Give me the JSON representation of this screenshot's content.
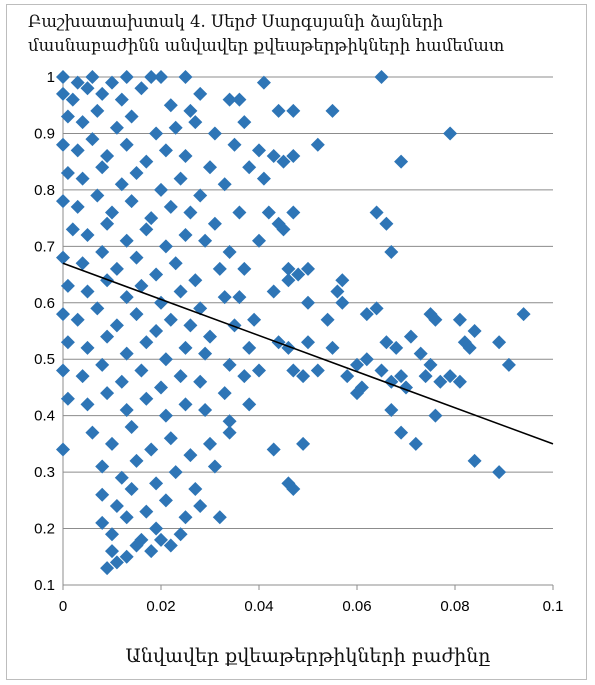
{
  "chart_data": {
    "type": "scatter",
    "title_lines": [
      "Բաշխատախտակ 4. Սերժ Սարգսյանի ձայների",
      "մասնաբաժինն անվավեր քվեաթերթիկների համեմատ"
    ],
    "xlabel": "Անվավեր քվեաթերթիկների բաժինը",
    "ylabel": "",
    "xlim": [
      0,
      0.1
    ],
    "ylim": [
      0.1,
      1
    ],
    "x_ticks": [
      "0",
      "0.02",
      "0.04",
      "0.06",
      "0.08",
      "0.1"
    ],
    "y_ticks": [
      "0.1",
      "0.2",
      "0.3",
      "0.4",
      "0.5",
      "0.6",
      "0.7",
      "0.8",
      "0.9",
      "1"
    ],
    "grid": "horizontal",
    "marker": "diamond",
    "marker_color": "#2E75B6",
    "trendline": {
      "color": "#000000",
      "x": [
        0,
        0.1
      ],
      "y": [
        0.67,
        0.35
      ]
    },
    "series": [
      {
        "points": [
          [
            0.0,
            1.0
          ],
          [
            0.003,
            0.99
          ],
          [
            0.006,
            1.0
          ],
          [
            0.01,
            0.99
          ],
          [
            0.013,
            1.0
          ],
          [
            0.018,
            1.0
          ],
          [
            0.02,
            1.0
          ],
          [
            0.025,
            1.0
          ],
          [
            0.041,
            0.99
          ],
          [
            0.065,
            1.0
          ],
          [
            0.0,
            0.97
          ],
          [
            0.002,
            0.96
          ],
          [
            0.005,
            0.98
          ],
          [
            0.008,
            0.97
          ],
          [
            0.012,
            0.96
          ],
          [
            0.016,
            0.98
          ],
          [
            0.022,
            0.95
          ],
          [
            0.026,
            0.94
          ],
          [
            0.028,
            0.97
          ],
          [
            0.034,
            0.96
          ],
          [
            0.036,
            0.96
          ],
          [
            0.001,
            0.93
          ],
          [
            0.004,
            0.92
          ],
          [
            0.007,
            0.94
          ],
          [
            0.011,
            0.91
          ],
          [
            0.014,
            0.93
          ],
          [
            0.019,
            0.9
          ],
          [
            0.023,
            0.91
          ],
          [
            0.027,
            0.92
          ],
          [
            0.031,
            0.9
          ],
          [
            0.037,
            0.92
          ],
          [
            0.044,
            0.94
          ],
          [
            0.047,
            0.94
          ],
          [
            0.055,
            0.94
          ],
          [
            0.079,
            0.9
          ],
          [
            0.0,
            0.88
          ],
          [
            0.003,
            0.87
          ],
          [
            0.006,
            0.89
          ],
          [
            0.009,
            0.86
          ],
          [
            0.013,
            0.88
          ],
          [
            0.017,
            0.85
          ],
          [
            0.021,
            0.87
          ],
          [
            0.025,
            0.86
          ],
          [
            0.03,
            0.84
          ],
          [
            0.035,
            0.88
          ],
          [
            0.04,
            0.87
          ],
          [
            0.043,
            0.86
          ],
          [
            0.045,
            0.85
          ],
          [
            0.047,
            0.86
          ],
          [
            0.052,
            0.88
          ],
          [
            0.069,
            0.85
          ],
          [
            0.001,
            0.83
          ],
          [
            0.004,
            0.82
          ],
          [
            0.008,
            0.84
          ],
          [
            0.012,
            0.81
          ],
          [
            0.015,
            0.83
          ],
          [
            0.02,
            0.8
          ],
          [
            0.024,
            0.82
          ],
          [
            0.028,
            0.79
          ],
          [
            0.033,
            0.81
          ],
          [
            0.038,
            0.84
          ],
          [
            0.041,
            0.82
          ],
          [
            0.0,
            0.78
          ],
          [
            0.003,
            0.77
          ],
          [
            0.007,
            0.79
          ],
          [
            0.01,
            0.76
          ],
          [
            0.014,
            0.78
          ],
          [
            0.018,
            0.75
          ],
          [
            0.022,
            0.77
          ],
          [
            0.026,
            0.76
          ],
          [
            0.031,
            0.74
          ],
          [
            0.036,
            0.76
          ],
          [
            0.042,
            0.76
          ],
          [
            0.044,
            0.74
          ],
          [
            0.047,
            0.76
          ],
          [
            0.066,
            0.74
          ],
          [
            0.064,
            0.76
          ],
          [
            0.002,
            0.73
          ],
          [
            0.005,
            0.72
          ],
          [
            0.009,
            0.74
          ],
          [
            0.013,
            0.71
          ],
          [
            0.017,
            0.73
          ],
          [
            0.021,
            0.7
          ],
          [
            0.025,
            0.72
          ],
          [
            0.029,
            0.71
          ],
          [
            0.034,
            0.69
          ],
          [
            0.04,
            0.71
          ],
          [
            0.045,
            0.73
          ],
          [
            0.067,
            0.69
          ],
          [
            0.0,
            0.68
          ],
          [
            0.004,
            0.67
          ],
          [
            0.008,
            0.69
          ],
          [
            0.011,
            0.66
          ],
          [
            0.015,
            0.68
          ],
          [
            0.019,
            0.65
          ],
          [
            0.023,
            0.67
          ],
          [
            0.027,
            0.64
          ],
          [
            0.032,
            0.66
          ],
          [
            0.037,
            0.66
          ],
          [
            0.046,
            0.66
          ],
          [
            0.048,
            0.65
          ],
          [
            0.05,
            0.66
          ],
          [
            0.057,
            0.64
          ],
          [
            0.001,
            0.63
          ],
          [
            0.005,
            0.62
          ],
          [
            0.009,
            0.64
          ],
          [
            0.013,
            0.61
          ],
          [
            0.016,
            0.63
          ],
          [
            0.02,
            0.6
          ],
          [
            0.024,
            0.62
          ],
          [
            0.028,
            0.59
          ],
          [
            0.033,
            0.61
          ],
          [
            0.036,
            0.61
          ],
          [
            0.043,
            0.62
          ],
          [
            0.046,
            0.64
          ],
          [
            0.05,
            0.6
          ],
          [
            0.056,
            0.62
          ],
          [
            0.057,
            0.6
          ],
          [
            0.0,
            0.58
          ],
          [
            0.003,
            0.57
          ],
          [
            0.007,
            0.59
          ],
          [
            0.011,
            0.56
          ],
          [
            0.015,
            0.58
          ],
          [
            0.019,
            0.55
          ],
          [
            0.022,
            0.57
          ],
          [
            0.026,
            0.56
          ],
          [
            0.03,
            0.54
          ],
          [
            0.035,
            0.56
          ],
          [
            0.039,
            0.57
          ],
          [
            0.054,
            0.57
          ],
          [
            0.062,
            0.58
          ],
          [
            0.064,
            0.59
          ],
          [
            0.075,
            0.58
          ],
          [
            0.076,
            0.57
          ],
          [
            0.081,
            0.57
          ],
          [
            0.094,
            0.58
          ],
          [
            0.001,
            0.53
          ],
          [
            0.005,
            0.52
          ],
          [
            0.009,
            0.54
          ],
          [
            0.013,
            0.51
          ],
          [
            0.017,
            0.53
          ],
          [
            0.021,
            0.5
          ],
          [
            0.025,
            0.52
          ],
          [
            0.029,
            0.51
          ],
          [
            0.034,
            0.49
          ],
          [
            0.038,
            0.52
          ],
          [
            0.044,
            0.53
          ],
          [
            0.046,
            0.52
          ],
          [
            0.05,
            0.53
          ],
          [
            0.055,
            0.52
          ],
          [
            0.06,
            0.49
          ],
          [
            0.062,
            0.5
          ],
          [
            0.066,
            0.53
          ],
          [
            0.068,
            0.52
          ],
          [
            0.071,
            0.54
          ],
          [
            0.073,
            0.51
          ],
          [
            0.075,
            0.49
          ],
          [
            0.082,
            0.53
          ],
          [
            0.083,
            0.52
          ],
          [
            0.084,
            0.55
          ],
          [
            0.089,
            0.53
          ],
          [
            0.0,
            0.48
          ],
          [
            0.004,
            0.47
          ],
          [
            0.008,
            0.49
          ],
          [
            0.012,
            0.46
          ],
          [
            0.016,
            0.48
          ],
          [
            0.02,
            0.45
          ],
          [
            0.024,
            0.47
          ],
          [
            0.028,
            0.46
          ],
          [
            0.033,
            0.44
          ],
          [
            0.037,
            0.47
          ],
          [
            0.04,
            0.48
          ],
          [
            0.047,
            0.48
          ],
          [
            0.049,
            0.47
          ],
          [
            0.052,
            0.48
          ],
          [
            0.058,
            0.47
          ],
          [
            0.061,
            0.45
          ],
          [
            0.065,
            0.48
          ],
          [
            0.067,
            0.46
          ],
          [
            0.069,
            0.47
          ],
          [
            0.07,
            0.45
          ],
          [
            0.074,
            0.47
          ],
          [
            0.077,
            0.46
          ],
          [
            0.079,
            0.47
          ],
          [
            0.081,
            0.46
          ],
          [
            0.091,
            0.49
          ],
          [
            0.001,
            0.43
          ],
          [
            0.005,
            0.42
          ],
          [
            0.009,
            0.44
          ],
          [
            0.013,
            0.41
          ],
          [
            0.017,
            0.43
          ],
          [
            0.021,
            0.4
          ],
          [
            0.025,
            0.42
          ],
          [
            0.029,
            0.41
          ],
          [
            0.034,
            0.39
          ],
          [
            0.038,
            0.42
          ],
          [
            0.06,
            0.44
          ],
          [
            0.067,
            0.41
          ],
          [
            0.069,
            0.37
          ],
          [
            0.072,
            0.35
          ],
          [
            0.076,
            0.4
          ],
          [
            0.0,
            0.34
          ],
          [
            0.006,
            0.37
          ],
          [
            0.01,
            0.35
          ],
          [
            0.014,
            0.38
          ],
          [
            0.018,
            0.34
          ],
          [
            0.022,
            0.36
          ],
          [
            0.026,
            0.33
          ],
          [
            0.03,
            0.35
          ],
          [
            0.034,
            0.37
          ],
          [
            0.043,
            0.34
          ],
          [
            0.049,
            0.35
          ],
          [
            0.084,
            0.32
          ],
          [
            0.089,
            0.3
          ],
          [
            0.008,
            0.31
          ],
          [
            0.012,
            0.29
          ],
          [
            0.015,
            0.32
          ],
          [
            0.019,
            0.28
          ],
          [
            0.023,
            0.3
          ],
          [
            0.027,
            0.27
          ],
          [
            0.031,
            0.31
          ],
          [
            0.046,
            0.28
          ],
          [
            0.047,
            0.27
          ],
          [
            0.008,
            0.26
          ],
          [
            0.011,
            0.24
          ],
          [
            0.014,
            0.27
          ],
          [
            0.017,
            0.23
          ],
          [
            0.021,
            0.25
          ],
          [
            0.025,
            0.22
          ],
          [
            0.028,
            0.24
          ],
          [
            0.032,
            0.22
          ],
          [
            0.008,
            0.21
          ],
          [
            0.01,
            0.19
          ],
          [
            0.013,
            0.22
          ],
          [
            0.016,
            0.18
          ],
          [
            0.019,
            0.2
          ],
          [
            0.022,
            0.17
          ],
          [
            0.024,
            0.19
          ],
          [
            0.01,
            0.16
          ],
          [
            0.011,
            0.14
          ],
          [
            0.013,
            0.15
          ],
          [
            0.015,
            0.17
          ],
          [
            0.018,
            0.16
          ],
          [
            0.02,
            0.18
          ],
          [
            0.009,
            0.13
          ]
        ]
      }
    ]
  }
}
